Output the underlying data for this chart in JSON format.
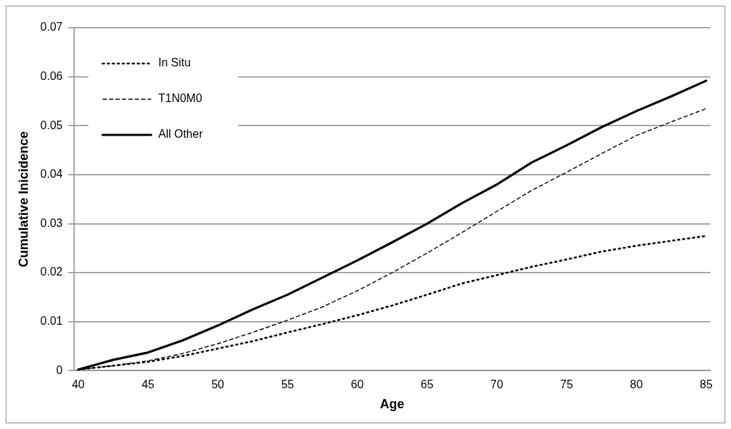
{
  "chart_data": {
    "type": "line",
    "xlabel": "Age",
    "ylabel": "Cumulative Inicidence",
    "x": [
      40,
      42.5,
      45,
      47.5,
      50,
      52.5,
      55,
      57.5,
      60,
      62.5,
      65,
      67.5,
      70,
      72.5,
      75,
      77.5,
      80,
      82.5,
      85
    ],
    "series": [
      {
        "name": "In Situ",
        "color": "#000000",
        "line_style": "dotted",
        "values": [
          0.0002,
          0.001,
          0.0018,
          0.003,
          0.0045,
          0.006,
          0.0078,
          0.0095,
          0.0113,
          0.0133,
          0.0155,
          0.0178,
          0.0195,
          0.0212,
          0.0227,
          0.0243,
          0.0255,
          0.0265,
          0.0275
        ]
      },
      {
        "name": "T1N0M0",
        "color": "#000000",
        "line_style": "dashed",
        "values": [
          0.0002,
          0.001,
          0.002,
          0.0035,
          0.0055,
          0.0078,
          0.0103,
          0.013,
          0.0163,
          0.02,
          0.024,
          0.0282,
          0.0325,
          0.0368,
          0.0405,
          0.0443,
          0.048,
          0.0508,
          0.0535
        ]
      },
      {
        "name": "All Other",
        "color": "#000000",
        "line_style": "solid",
        "values": [
          0.0002,
          0.0022,
          0.0037,
          0.0062,
          0.0092,
          0.0125,
          0.0155,
          0.019,
          0.0225,
          0.0262,
          0.03,
          0.0342,
          0.038,
          0.0425,
          0.046,
          0.0497,
          0.053,
          0.056,
          0.0592
        ]
      }
    ],
    "xlim": [
      39.7,
      85.3
    ],
    "xticks": [
      40,
      45,
      50,
      55,
      60,
      65,
      70,
      75,
      80,
      85
    ],
    "ylim": [
      0,
      0.07
    ],
    "yticks": [
      0,
      0.01,
      0.02,
      0.03,
      0.04,
      0.05,
      0.06,
      0.07
    ],
    "grid": "y",
    "legend": "top left",
    "marker": "none"
  }
}
